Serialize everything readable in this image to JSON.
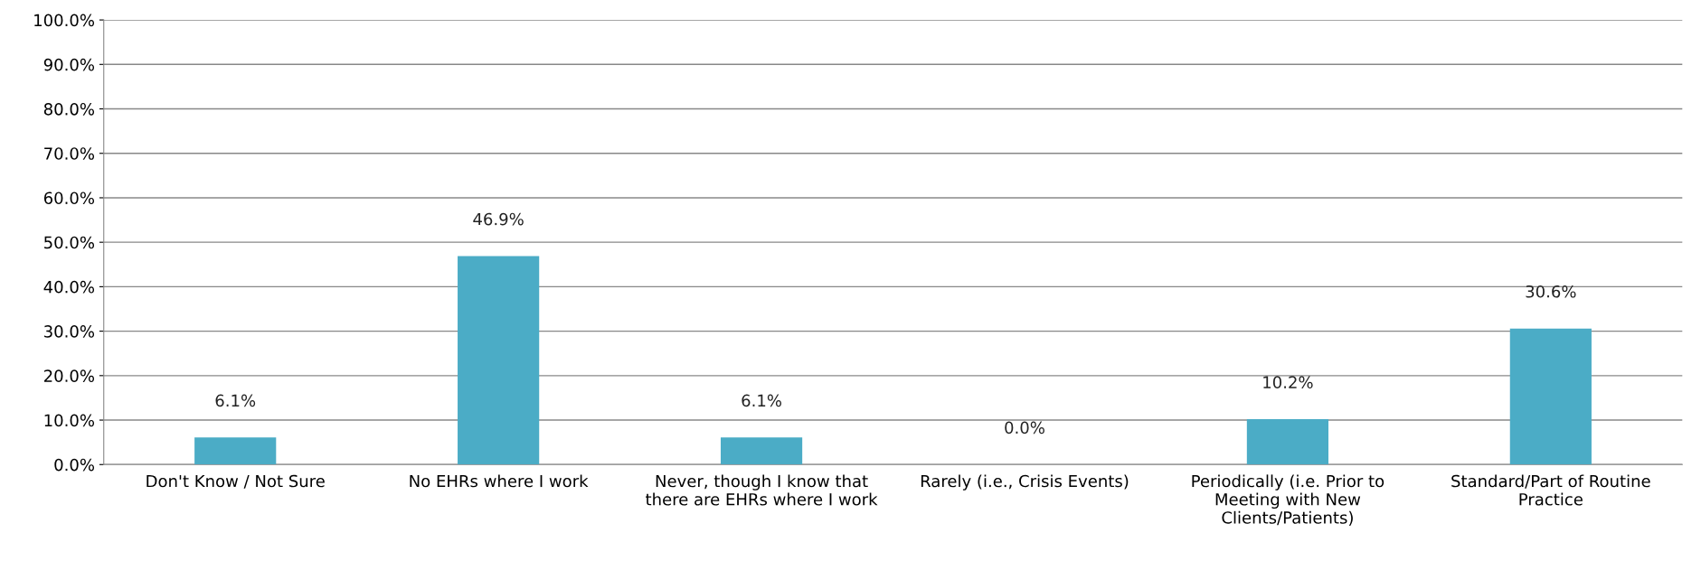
{
  "chart_data": {
    "type": "bar",
    "categories": [
      "Don't Know / Not Sure",
      "No EHRs where I work",
      "Never, though I know that there are EHRs where I work",
      "Rarely (i.e., Crisis Events)",
      "Periodically (i.e. Prior to Meeting with New Clients/Patients)",
      "Standard/Part of Routine Practice"
    ],
    "values": [
      6.1,
      46.9,
      6.1,
      0.0,
      10.2,
      30.6
    ],
    "value_labels": [
      "6.1%",
      "46.9%",
      "6.1%",
      "0.0%",
      "10.2%",
      "30.6%"
    ],
    "color": "#4bacc6",
    "ylim": [
      0,
      100
    ],
    "yticks": [
      {
        "value": 0,
        "label": "0.0%"
      },
      {
        "value": 10,
        "label": "10.0%"
      },
      {
        "value": 20,
        "label": "20.0%"
      },
      {
        "value": 30,
        "label": "30.0%"
      },
      {
        "value": 40,
        "label": "40.0%"
      },
      {
        "value": 50,
        "label": "50.0%"
      },
      {
        "value": 60,
        "label": "60.0%"
      },
      {
        "value": 70,
        "label": "70.0%"
      },
      {
        "value": 80,
        "label": "80.0%"
      },
      {
        "value": 90,
        "label": "90.0%"
      },
      {
        "value": 100,
        "label": "100.0%"
      }
    ],
    "grid": "y",
    "legend": false
  }
}
